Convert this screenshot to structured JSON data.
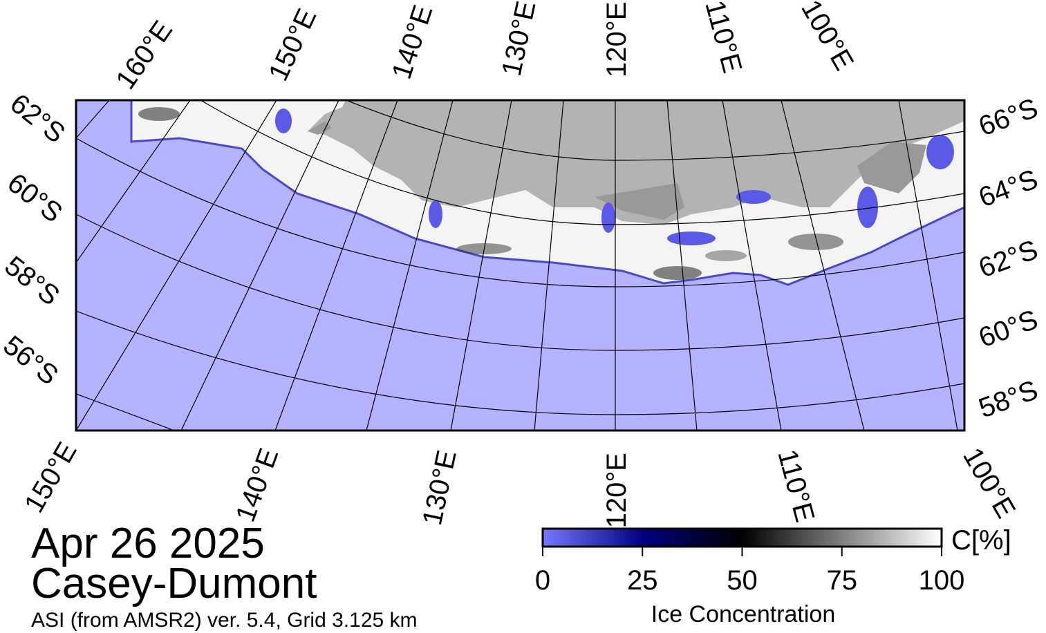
{
  "map": {
    "lon_labels_top": [
      "160°E",
      "150°E",
      "140°E",
      "130°E",
      "120°E",
      "110°E",
      "100°E"
    ],
    "lon_labels_bottom": [
      "150°E",
      "140°E",
      "130°E",
      "120°E",
      "110°E",
      "100°E"
    ],
    "lat_labels_left": [
      "62°S",
      "60°S",
      "58°S",
      "56°S"
    ],
    "lat_labels_right": [
      "66°S",
      "64°S",
      "62°S",
      "60°S",
      "58°S"
    ]
  },
  "title": "Apr 26 2025",
  "region": "Casey-Dumont",
  "subtitle": "ASI (from AMSR2) ver. 5.4,  Grid 3.125 km",
  "colorbar": {
    "lim": [
      0,
      100
    ],
    "ticks": [
      0,
      25,
      50,
      75,
      100
    ],
    "unit_label": "C[%]",
    "label": "Ice Concentration"
  }
}
